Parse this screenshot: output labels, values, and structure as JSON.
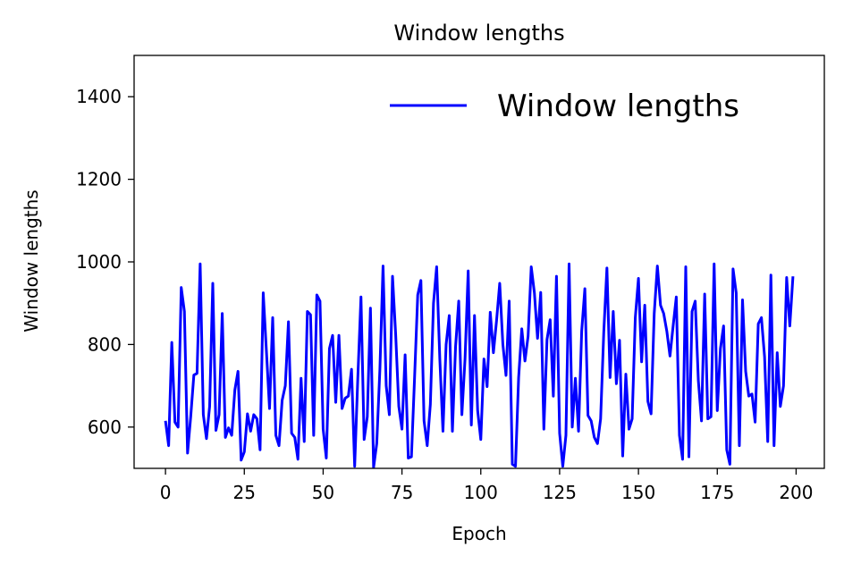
{
  "chart_data": {
    "type": "line",
    "title": "Window lengths",
    "xlabel": "Epoch",
    "ylabel": "Window lengths",
    "xlim": [
      -9.95,
      208.95
    ],
    "ylim": [
      500,
      1500
    ],
    "xticks": [
      0,
      25,
      50,
      75,
      100,
      125,
      150,
      175,
      200
    ],
    "yticks": [
      600,
      800,
      1000,
      1200,
      1400
    ],
    "grid": false,
    "legend_position": "top-right",
    "series": [
      {
        "name": "Window lengths",
        "color": "#0000ff",
        "x": [
          0,
          1,
          2,
          3,
          4,
          5,
          6,
          7,
          8,
          9,
          10,
          11,
          12,
          13,
          14,
          15,
          16,
          17,
          18,
          19,
          20,
          21,
          22,
          23,
          24,
          25,
          26,
          27,
          28,
          29,
          30,
          31,
          32,
          33,
          34,
          35,
          36,
          37,
          38,
          39,
          40,
          41,
          42,
          43,
          44,
          45,
          46,
          47,
          48,
          49,
          50,
          51,
          52,
          53,
          54,
          55,
          56,
          57,
          58,
          59,
          60,
          61,
          62,
          63,
          64,
          65,
          66,
          67,
          68,
          69,
          70,
          71,
          72,
          73,
          74,
          75,
          76,
          77,
          78,
          79,
          80,
          81,
          82,
          83,
          84,
          85,
          86,
          87,
          88,
          89,
          90,
          91,
          92,
          93,
          94,
          95,
          96,
          97,
          98,
          99,
          100,
          101,
          102,
          103,
          104,
          105,
          106,
          107,
          108,
          109,
          110,
          111,
          112,
          113,
          114,
          115,
          116,
          117,
          118,
          119,
          120,
          121,
          122,
          123,
          124,
          125,
          126,
          127,
          128,
          129,
          130,
          131,
          132,
          133,
          134,
          135,
          136,
          137,
          138,
          139,
          140,
          141,
          142,
          143,
          144,
          145,
          146,
          147,
          148,
          149,
          150,
          151,
          152,
          153,
          154,
          155,
          156,
          157,
          158,
          159,
          160,
          161,
          162,
          163,
          164,
          165,
          166,
          167,
          168,
          169,
          170,
          171,
          172,
          173,
          174,
          175,
          176,
          177,
          178,
          179,
          180,
          181,
          182,
          183,
          184,
          185,
          186,
          187,
          188,
          189,
          190,
          191,
          192,
          193,
          194,
          195,
          196,
          197,
          198,
          199
        ],
        "values": [
          615,
          555,
          805,
          612,
          600,
          938,
          880,
          537,
          625,
          726,
          730,
          995,
          630,
          572,
          650,
          948,
          592,
          630,
          875,
          575,
          598,
          580,
          690,
          735,
          520,
          540,
          632,
          590,
          630,
          620,
          545,
          925,
          785,
          645,
          865,
          580,
          555,
          665,
          700,
          855,
          585,
          575,
          522,
          718,
          565,
          880,
          872,
          580,
          920,
          905,
          595,
          525,
          790,
          822,
          660,
          822,
          645,
          670,
          675,
          740,
          505,
          720,
          915,
          570,
          625,
          888,
          502,
          560,
          740,
          990,
          700,
          630,
          965,
          825,
          650,
          595,
          775,
          525,
          528,
          720,
          920,
          955,
          615,
          555,
          655,
          900,
          988,
          765,
          590,
          800,
          870,
          590,
          795,
          905,
          630,
          765,
          978,
          605,
          870,
          640,
          570,
          765,
          698,
          878,
          780,
          858,
          948,
          800,
          725,
          905,
          510,
          505,
          720,
          838,
          760,
          820,
          988,
          925,
          815,
          926,
          595,
          812,
          860,
          675,
          965,
          585,
          505,
          580,
          995,
          600,
          718,
          590,
          833,
          935,
          628,
          615,
          575,
          560,
          620,
          830,
          985,
          720,
          880,
          705,
          810,
          530,
          728,
          595,
          620,
          865,
          960,
          758,
          895,
          662,
          632,
          875,
          990,
          895,
          875,
          832,
          772,
          845,
          915,
          580,
          522,
          988,
          528,
          880,
          905,
          712,
          615,
          922,
          620,
          625,
          995,
          640,
          790,
          845,
          545,
          510,
          983,
          925,
          555,
          908,
          735,
          675,
          680,
          612,
          850,
          865,
          770,
          565,
          968,
          555,
          780,
          650,
          700,
          962,
          845,
          965
        ]
      }
    ]
  }
}
